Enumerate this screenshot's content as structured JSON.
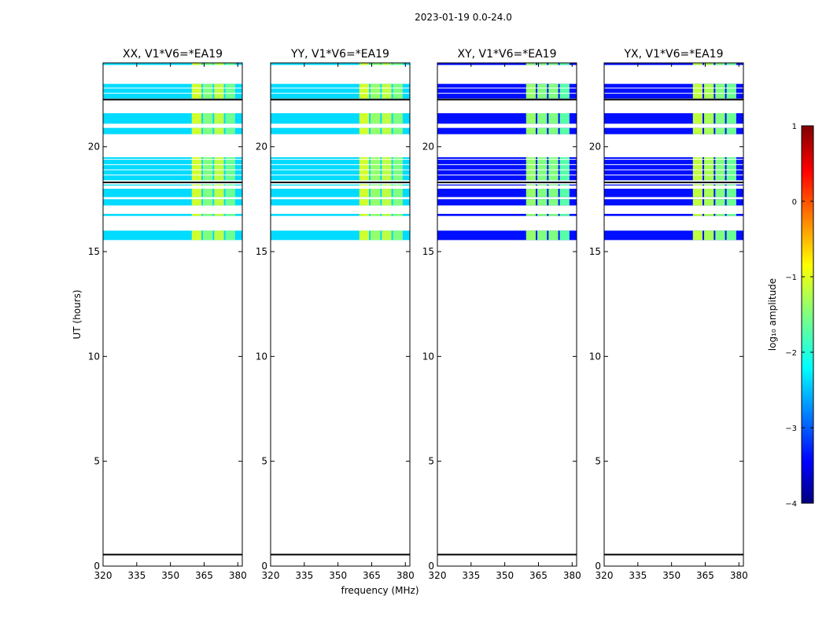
{
  "figure_title": "2023-01-19 0.0-24.0",
  "shared": {
    "xlabel": "frequency (MHz)",
    "ylabel": "UT (hours)",
    "x_range": [
      320,
      382
    ],
    "y_range": [
      0,
      24
    ],
    "x_ticks": [
      "320",
      "335",
      "350",
      "365",
      "380"
    ],
    "y_ticks": [
      "0",
      "5",
      "10",
      "15",
      "20"
    ]
  },
  "colorbar": {
    "label": "log₁₀ amplitude",
    "range": [
      -4,
      1
    ],
    "ticks": [
      "1",
      "0",
      "−1",
      "−2",
      "−3",
      "−4"
    ],
    "colormap": "jet"
  },
  "chart_data": [
    {
      "type": "heatmap",
      "title": "XX, V1*V6=*EA19",
      "polarization": "XX",
      "base_level": -2.3,
      "high_band_levels": [
        -1.1,
        -1.5,
        -1.2,
        -1.6
      ],
      "data_rows_ut": [
        [
          15.55,
          16.0
        ],
        [
          16.7,
          16.8
        ],
        [
          17.2,
          17.5
        ],
        [
          17.6,
          18.0
        ],
        [
          18.15,
          18.2
        ],
        [
          18.4,
          19.5
        ],
        [
          20.6,
          20.9
        ],
        [
          21.1,
          21.6
        ],
        [
          22.3,
          23.0
        ],
        [
          23.9,
          24.0
        ]
      ],
      "black_lines_ut": [
        0.55,
        18.3,
        22.25
      ]
    },
    {
      "type": "heatmap",
      "title": "YY, V1*V6=*EA19",
      "polarization": "YY",
      "base_level": -2.3,
      "high_band_levels": [
        -1.1,
        -1.4,
        -1.2,
        -1.5
      ],
      "data_rows_ut": [
        [
          15.55,
          16.0
        ],
        [
          16.7,
          16.8
        ],
        [
          17.2,
          17.5
        ],
        [
          17.6,
          18.0
        ],
        [
          18.15,
          18.2
        ],
        [
          18.4,
          19.5
        ],
        [
          20.6,
          20.9
        ],
        [
          21.1,
          21.6
        ],
        [
          22.3,
          23.0
        ],
        [
          23.9,
          24.0
        ]
      ],
      "black_lines_ut": [
        0.55,
        18.3,
        22.25
      ]
    },
    {
      "type": "heatmap",
      "title": "XY, V1*V6=*EA19",
      "polarization": "XY",
      "base_level": -3.3,
      "high_band_levels": [
        -1.4,
        -1.5,
        -1.5,
        -1.7
      ],
      "data_rows_ut": [
        [
          15.55,
          16.0
        ],
        [
          16.7,
          16.8
        ],
        [
          17.2,
          17.5
        ],
        [
          17.6,
          18.0
        ],
        [
          18.15,
          18.2
        ],
        [
          18.4,
          19.5
        ],
        [
          20.6,
          20.9
        ],
        [
          21.1,
          21.6
        ],
        [
          22.3,
          23.0
        ],
        [
          23.9,
          24.0
        ]
      ],
      "black_lines_ut": [
        0.55,
        18.3,
        22.25
      ]
    },
    {
      "type": "heatmap",
      "title": "YX, V1*V6=*EA19",
      "polarization": "YX",
      "base_level": -3.3,
      "high_band_levels": [
        -1.2,
        -1.3,
        -1.5,
        -1.6
      ],
      "data_rows_ut": [
        [
          15.55,
          16.0
        ],
        [
          16.7,
          16.8
        ],
        [
          17.2,
          17.5
        ],
        [
          17.6,
          18.0
        ],
        [
          18.15,
          18.2
        ],
        [
          18.4,
          19.5
        ],
        [
          20.6,
          20.9
        ],
        [
          21.1,
          21.6
        ],
        [
          22.3,
          23.0
        ],
        [
          23.9,
          24.0
        ]
      ],
      "black_lines_ut": [
        0.55,
        18.3,
        22.25
      ]
    }
  ]
}
